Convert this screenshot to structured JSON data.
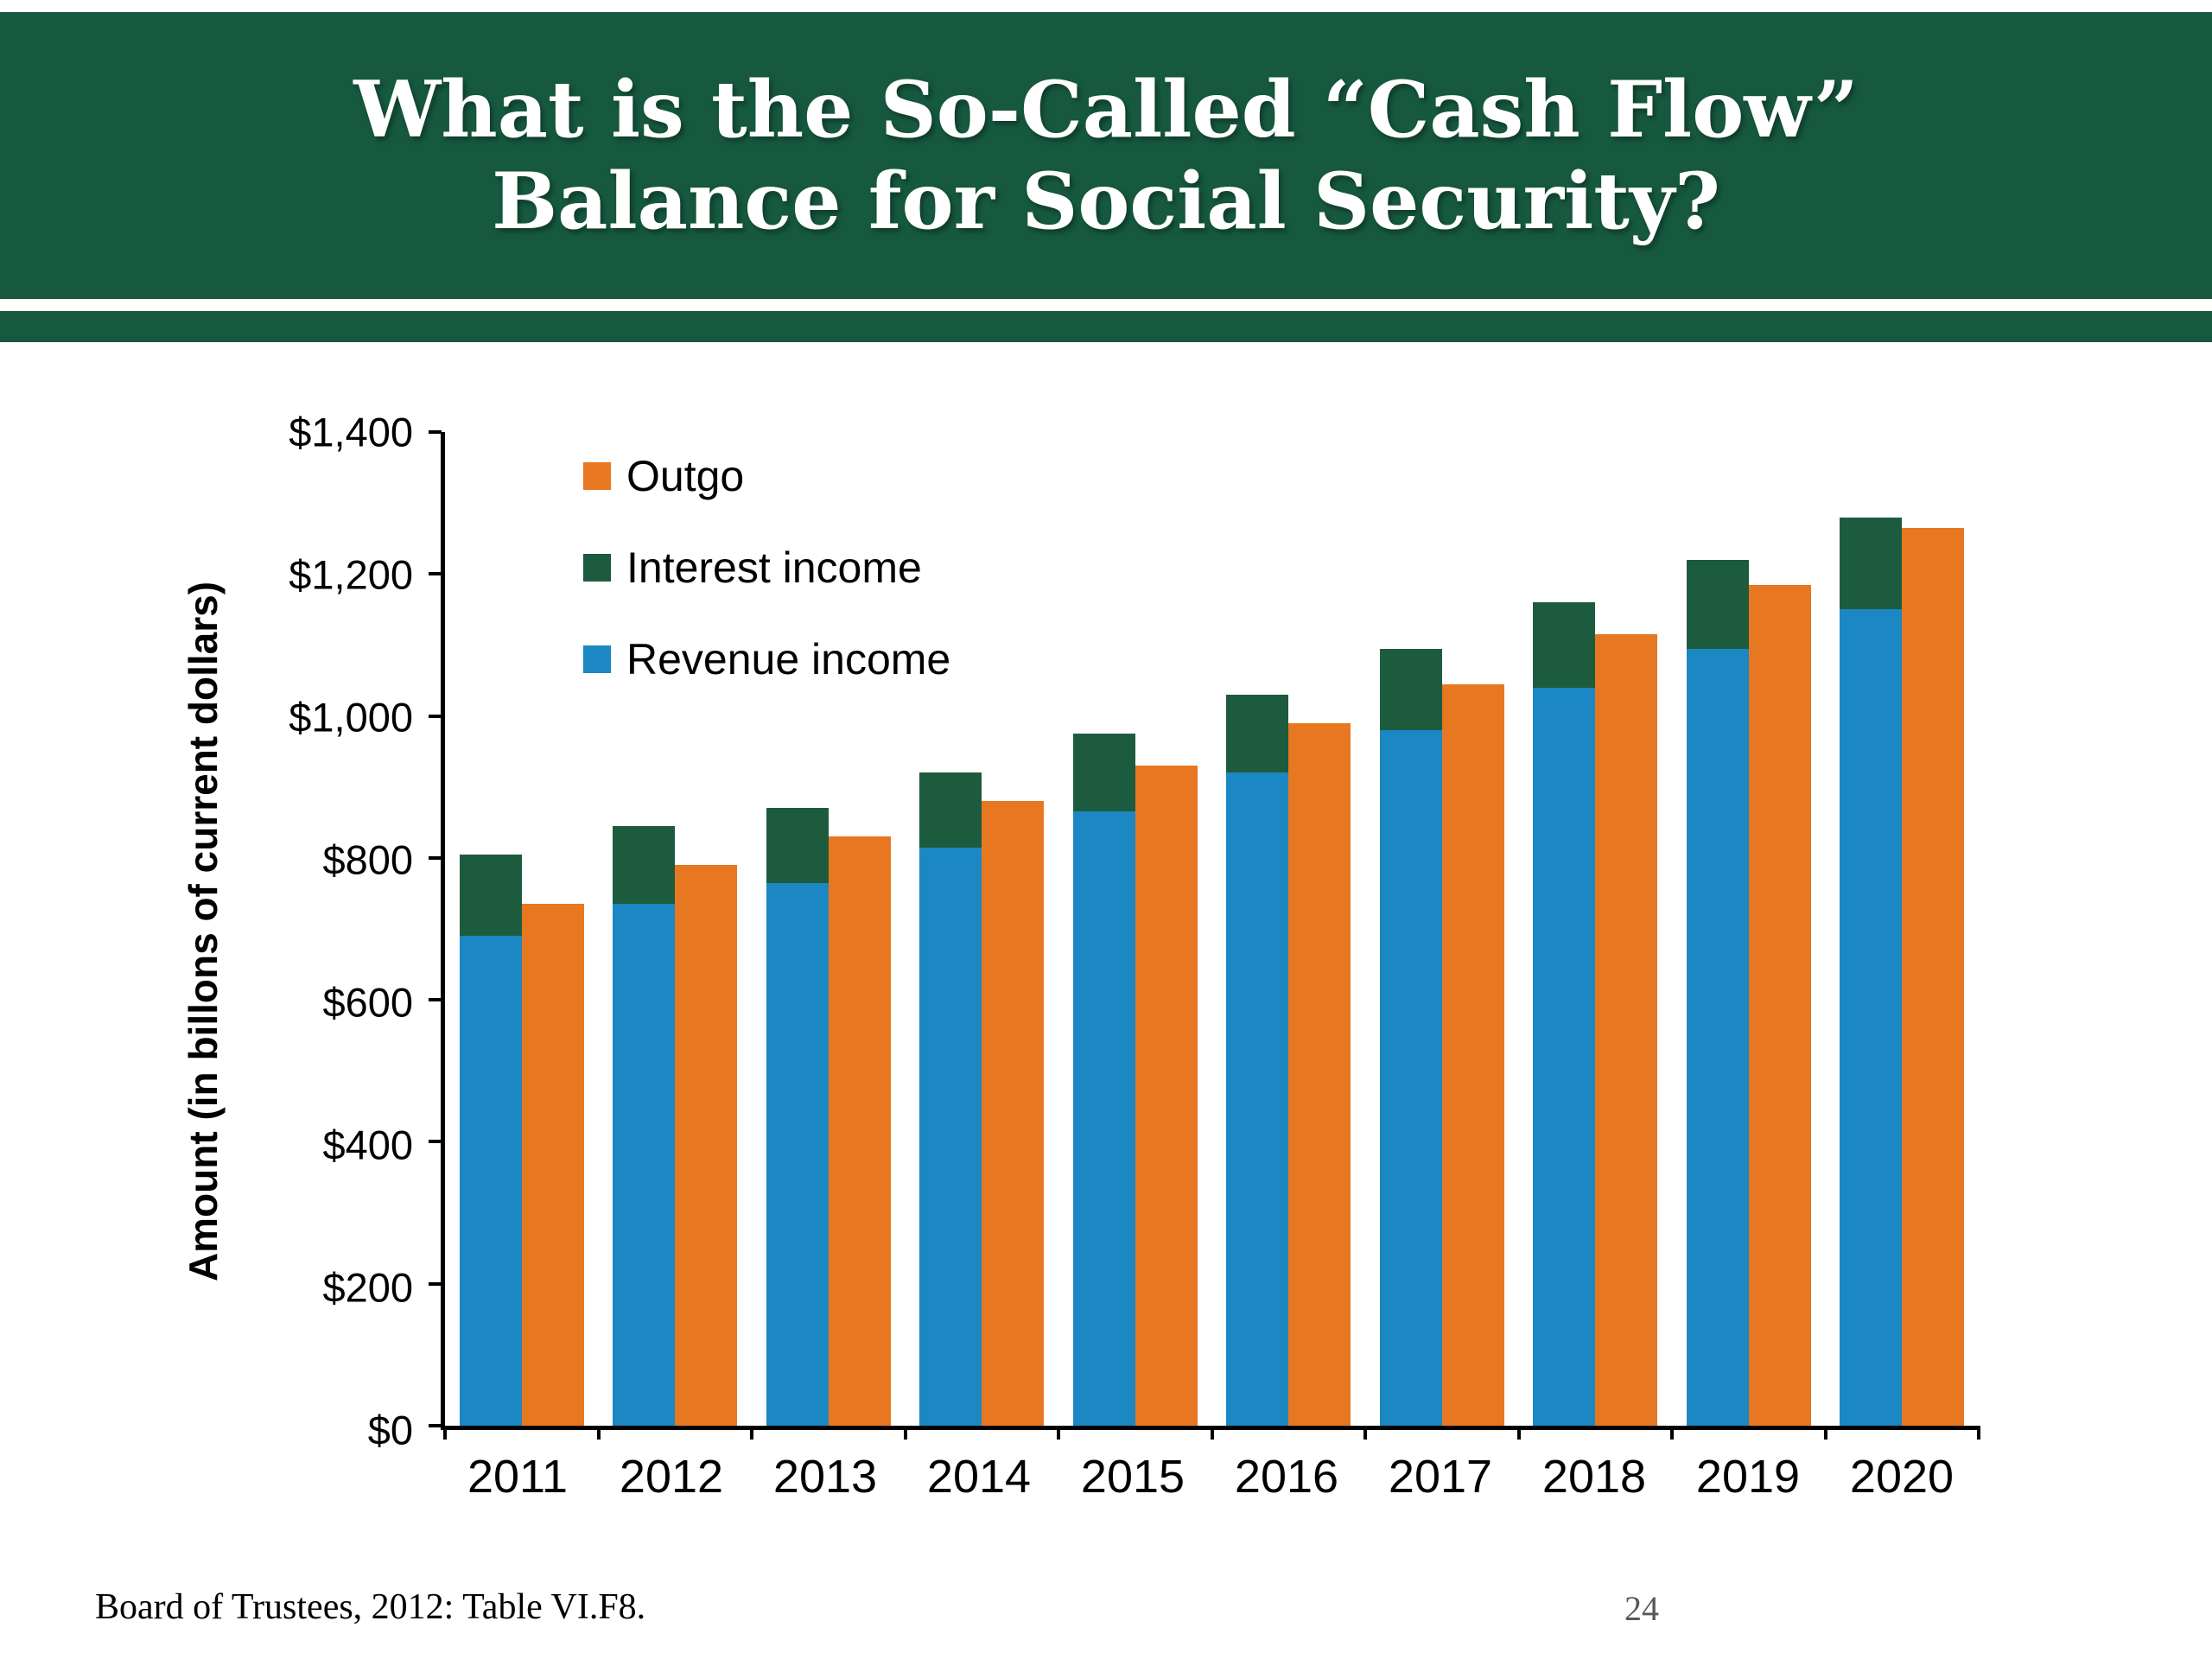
{
  "slide": {
    "title_line1": "What is the So-Called “Cash Flow”",
    "title_line2": "Balance for Social Security?",
    "footer_source": "Board of Trustees, 2012: Table VI.F8.",
    "page_number": "24"
  },
  "colors": {
    "header_green": "#16593F",
    "bar_green": "#1D5B3E",
    "bar_blue": "#1B87C3",
    "bar_orange": "#E87722"
  },
  "chart_data": {
    "type": "bar",
    "title": "",
    "xlabel": "",
    "ylabel": "Amount (in billons of current dollars)",
    "ylim": [
      0,
      1400
    ],
    "ytick_values": [
      0,
      200,
      400,
      600,
      800,
      1000,
      1200,
      1400
    ],
    "ytick_labels": [
      "$0",
      "$200",
      "$400",
      "$600",
      "$800",
      "$1,000",
      "$1,200",
      "$1,400"
    ],
    "categories": [
      "2011",
      "2012",
      "2013",
      "2014",
      "2015",
      "2016",
      "2017",
      "2018",
      "2019",
      "2020"
    ],
    "series": [
      {
        "name": "Revenue income",
        "color_key": "bar_blue",
        "values": [
          690,
          735,
          765,
          815,
          865,
          920,
          980,
          1040,
          1095,
          1150
        ]
      },
      {
        "name": "Interest income",
        "color_key": "bar_green",
        "values": [
          115,
          110,
          105,
          105,
          110,
          110,
          115,
          120,
          125,
          130
        ]
      },
      {
        "name": "Outgo",
        "color_key": "bar_orange",
        "values": [
          735,
          790,
          830,
          880,
          930,
          990,
          1045,
          1115,
          1185,
          1265
        ]
      }
    ],
    "legend": [
      {
        "label": "Outgo",
        "color_key": "bar_orange"
      },
      {
        "label": "Interest income",
        "color_key": "bar_green"
      },
      {
        "label": "Revenue income",
        "color_key": "bar_blue"
      }
    ],
    "legend_position": "top-left",
    "grid": false,
    "bar_arrangement": "stacked income (revenue+interest) beside outgo, per year"
  }
}
